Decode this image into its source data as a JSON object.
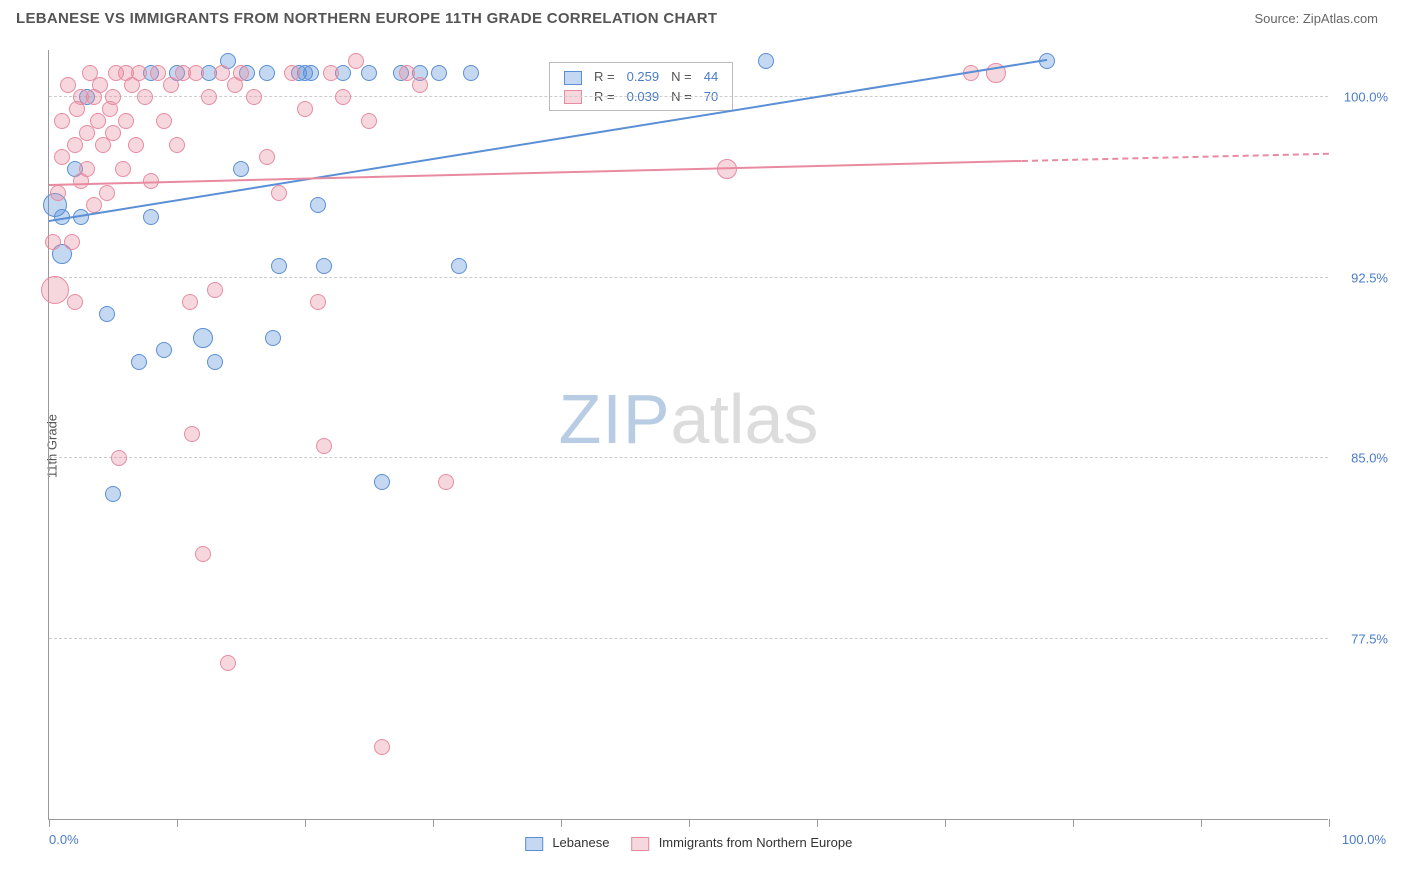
{
  "header": {
    "title": "LEBANESE VS IMMIGRANTS FROM NORTHERN EUROPE 11TH GRADE CORRELATION CHART",
    "source": "Source: ZipAtlas.com"
  },
  "watermark": {
    "part1": "ZIP",
    "part2": "atlas"
  },
  "chart": {
    "type": "scatter",
    "background_color": "#ffffff",
    "grid_color": "#cccccc",
    "axis_color": "#999999",
    "tick_label_color": "#4a7bc8",
    "y_axis_title": "11th Grade",
    "xlim": [
      0,
      100
    ],
    "ylim": [
      70,
      102
    ],
    "x_ticks": [
      0,
      10,
      20,
      30,
      40,
      50,
      60,
      70,
      80,
      90,
      100
    ],
    "x_tick_labels_shown": {
      "0": "0.0%",
      "100": "100.0%"
    },
    "y_ticks": [
      77.5,
      85.0,
      92.5,
      100.0
    ],
    "y_tick_labels": [
      "77.5%",
      "85.0%",
      "92.5%",
      "100.0%"
    ],
    "marker_radius": 8,
    "marker_opacity": 0.35,
    "series": [
      {
        "name": "Lebanese",
        "color": "#5a8fd6",
        "fill": "rgba(90,143,214,0.35)",
        "stroke": "#5a8fd6",
        "R": "0.259",
        "N": "44",
        "trend": {
          "x1": 0,
          "y1": 94.8,
          "x2": 78,
          "y2": 101.5
        },
        "points": [
          [
            0.5,
            95.5,
            12
          ],
          [
            1,
            95,
            8
          ],
          [
            1,
            93.5,
            10
          ],
          [
            2,
            97,
            8
          ],
          [
            2.5,
            95,
            8
          ],
          [
            3,
            100,
            8
          ],
          [
            4.5,
            91,
            8
          ],
          [
            5,
            83.5,
            8
          ],
          [
            7,
            89,
            8
          ],
          [
            8,
            101,
            8
          ],
          [
            8,
            95,
            8
          ],
          [
            9,
            89.5,
            8
          ],
          [
            10,
            101,
            8
          ],
          [
            12,
            90,
            10
          ],
          [
            12.5,
            101,
            8
          ],
          [
            13,
            89,
            8
          ],
          [
            14,
            101.5,
            8
          ],
          [
            15,
            97,
            8
          ],
          [
            15.5,
            101,
            8
          ],
          [
            17,
            101,
            8
          ],
          [
            17.5,
            90,
            8
          ],
          [
            18,
            93,
            8
          ],
          [
            19.5,
            101,
            8
          ],
          [
            20,
            101,
            8
          ],
          [
            20.5,
            101,
            8
          ],
          [
            21,
            95.5,
            8
          ],
          [
            21.5,
            93,
            8
          ],
          [
            23,
            101,
            8
          ],
          [
            25,
            101,
            8
          ],
          [
            26,
            84,
            8
          ],
          [
            27.5,
            101,
            8
          ],
          [
            29,
            101,
            8
          ],
          [
            30.5,
            101,
            8
          ],
          [
            32,
            93,
            8
          ],
          [
            33,
            101,
            8
          ],
          [
            56,
            101.5,
            8
          ],
          [
            78,
            101.5,
            8
          ]
        ]
      },
      {
        "name": "Immigrants from Northern Europe",
        "color": "#e88ba0",
        "fill": "rgba(232,139,160,0.35)",
        "stroke": "#e88ba0",
        "R": "0.039",
        "N": "70",
        "trend": {
          "x1": 0,
          "y1": 96.3,
          "x2": 76,
          "y2": 97.3
        },
        "trend_dash": {
          "x1": 76,
          "y1": 97.3,
          "x2": 100,
          "y2": 97.6
        },
        "points": [
          [
            0.3,
            94,
            8
          ],
          [
            0.5,
            92,
            14
          ],
          [
            0.7,
            96,
            8
          ],
          [
            1,
            97.5,
            8
          ],
          [
            1,
            99,
            8
          ],
          [
            1.5,
            100.5,
            8
          ],
          [
            1.8,
            94,
            8
          ],
          [
            2,
            98,
            8
          ],
          [
            2,
            91.5,
            8
          ],
          [
            2.2,
            99.5,
            8
          ],
          [
            2.5,
            96.5,
            8
          ],
          [
            2.5,
            100,
            8
          ],
          [
            3,
            98.5,
            8
          ],
          [
            3,
            97,
            8
          ],
          [
            3.2,
            101,
            8
          ],
          [
            3.5,
            100,
            8
          ],
          [
            3.5,
            95.5,
            8
          ],
          [
            3.8,
            99,
            8
          ],
          [
            4,
            100.5,
            8
          ],
          [
            4.2,
            98,
            8
          ],
          [
            4.5,
            96,
            8
          ],
          [
            4.8,
            99.5,
            8
          ],
          [
            5,
            100,
            8
          ],
          [
            5,
            98.5,
            8
          ],
          [
            5.2,
            101,
            8
          ],
          [
            5.5,
            85,
            8
          ],
          [
            5.8,
            97,
            8
          ],
          [
            6,
            101,
            8
          ],
          [
            6,
            99,
            8
          ],
          [
            6.5,
            100.5,
            8
          ],
          [
            6.8,
            98,
            8
          ],
          [
            7,
            101,
            8
          ],
          [
            7.5,
            100,
            8
          ],
          [
            8,
            96.5,
            8
          ],
          [
            8.5,
            101,
            8
          ],
          [
            9,
            99,
            8
          ],
          [
            9.5,
            100.5,
            8
          ],
          [
            10,
            98,
            8
          ],
          [
            10.5,
            101,
            8
          ],
          [
            11,
            91.5,
            8
          ],
          [
            11.2,
            86,
            8
          ],
          [
            11.5,
            101,
            8
          ],
          [
            12,
            81,
            8
          ],
          [
            12.5,
            100,
            8
          ],
          [
            13,
            92,
            8
          ],
          [
            13.5,
            101,
            8
          ],
          [
            14,
            76.5,
            8
          ],
          [
            14.5,
            100.5,
            8
          ],
          [
            15,
            101,
            8
          ],
          [
            16,
            100,
            8
          ],
          [
            17,
            97.5,
            8
          ],
          [
            18,
            96,
            8
          ],
          [
            19,
            101,
            8
          ],
          [
            20,
            99.5,
            8
          ],
          [
            21,
            91.5,
            8
          ],
          [
            21.5,
            85.5,
            8
          ],
          [
            22,
            101,
            8
          ],
          [
            23,
            100,
            8
          ],
          [
            24,
            101.5,
            8
          ],
          [
            25,
            99,
            8
          ],
          [
            26,
            73,
            8
          ],
          [
            28,
            101,
            8
          ],
          [
            29,
            100.5,
            8
          ],
          [
            31,
            84,
            8
          ],
          [
            53,
            97,
            10
          ],
          [
            72,
            101,
            8
          ],
          [
            74,
            101,
            10
          ]
        ]
      }
    ],
    "legend_top": {
      "R_label": "R =",
      "N_label": "N ="
    },
    "legend_bottom": {
      "label1": "Lebanese",
      "label2": "Immigrants from Northern Europe"
    }
  }
}
